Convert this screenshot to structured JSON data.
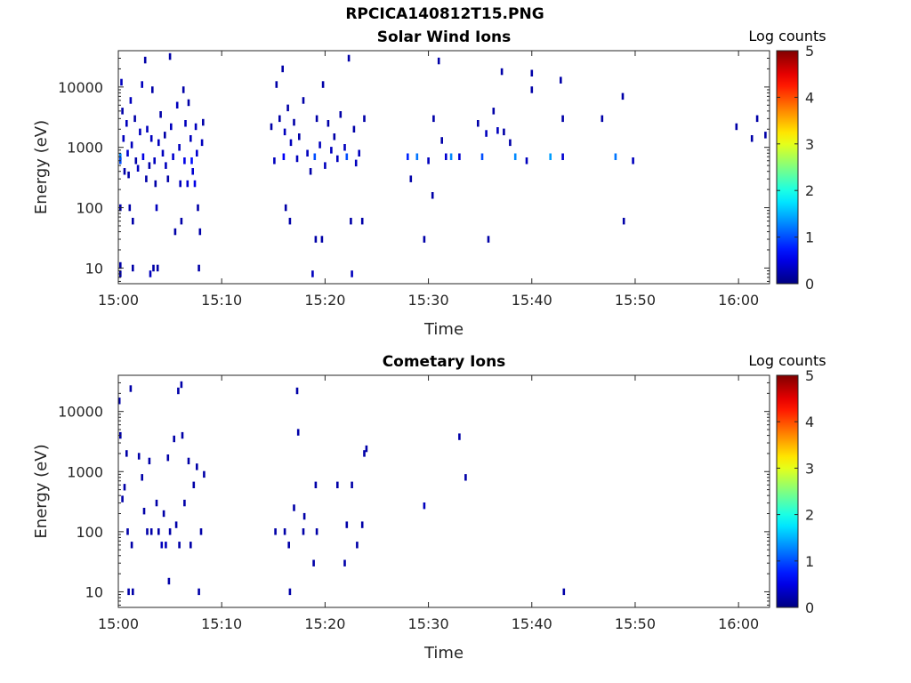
{
  "page_title": "RPCICA140812T15.PNG",
  "colors": {
    "axis": "#262626",
    "background": "#ffffff"
  },
  "chart_data": [
    {
      "type": "heatmap",
      "title": "Solar Wind Ions",
      "xlabel": "Time",
      "ylabel": "Energy (eV)",
      "x_ticks": [
        "15:00",
        "15:10",
        "15:20",
        "15:30",
        "15:40",
        "15:50",
        "16:00"
      ],
      "x_range": [
        "15:00",
        "16:03"
      ],
      "y_scale": "log",
      "y_range": [
        5.5,
        40000
      ],
      "y_ticks": [
        10,
        100,
        1000,
        10000
      ],
      "y_tick_labels": [
        "10",
        "100",
        "1000",
        "10000"
      ],
      "colorbar": {
        "title": "Log counts",
        "range": [
          0,
          5
        ],
        "ticks": [
          "0",
          "1",
          "2",
          "3",
          "4",
          "5"
        ],
        "colormap": "jet"
      },
      "cells": [
        [
          "15:00.2",
          700,
          1.3
        ],
        [
          "15:00.2",
          600,
          1.0
        ],
        [
          "15:00.2",
          100,
          0.2
        ],
        [
          "15:00.2",
          8,
          0.2
        ],
        [
          "15:00.2",
          11,
          0.2
        ],
        [
          "15:00.3",
          12000,
          0.3
        ],
        [
          "15:00.4",
          4000,
          0.2
        ],
        [
          "15:00.5",
          1400,
          0.3
        ],
        [
          "15:00.6",
          400,
          0.2
        ],
        [
          "15:00.8",
          2500,
          0.3
        ],
        [
          "15:00.9",
          800,
          0.4
        ],
        [
          "15:01.0",
          350,
          0.2
        ],
        [
          "15:01.1",
          100,
          0.2
        ],
        [
          "15:01.2",
          6000,
          0.3
        ],
        [
          "15:01.3",
          1100,
          0.3
        ],
        [
          "15:01.4",
          60,
          0.2
        ],
        [
          "15:01.4",
          10,
          0.2
        ],
        [
          "15:01.6",
          3000,
          0.2
        ],
        [
          "15:01.7",
          600,
          0.2
        ],
        [
          "15:01.9",
          450,
          0.3
        ],
        [
          "15:02.1",
          1800,
          0.3
        ],
        [
          "15:02.3",
          11000,
          0.3
        ],
        [
          "15:02.4",
          700,
          0.5
        ],
        [
          "15:02.6",
          28000,
          0.2
        ],
        [
          "15:02.7",
          300,
          0.2
        ],
        [
          "15:02.8",
          2000,
          0.3
        ],
        [
          "15:03.0",
          500,
          0.2
        ],
        [
          "15:03.1",
          8,
          0.3
        ],
        [
          "15:03.2",
          1400,
          0.3
        ],
        [
          "15:03.3",
          9000,
          0.2
        ],
        [
          "15:03.4",
          10,
          0.2
        ],
        [
          "15:03.5",
          600,
          0.3
        ],
        [
          "15:03.6",
          250,
          0.2
        ],
        [
          "15:03.7",
          100,
          0.3
        ],
        [
          "15:03.8",
          10,
          0.2
        ],
        [
          "15:03.9",
          1200,
          0.3
        ],
        [
          "15:04.1",
          3500,
          0.2
        ],
        [
          "15:04.3",
          800,
          0.3
        ],
        [
          "15:04.5",
          1600,
          0.2
        ],
        [
          "15:04.6",
          500,
          0.3
        ],
        [
          "15:04.8",
          300,
          0.2
        ],
        [
          "15:05.0",
          32000,
          0.2
        ],
        [
          "15:05.1",
          2200,
          0.3
        ],
        [
          "15:05.3",
          700,
          0.4
        ],
        [
          "15:05.5",
          40,
          0.2
        ],
        [
          "15:05.7",
          5000,
          0.3
        ],
        [
          "15:05.9",
          1000,
          0.3
        ],
        [
          "15:06.0",
          250,
          0.3
        ],
        [
          "15:06.1",
          60,
          0.2
        ],
        [
          "15:06.3",
          9000,
          0.2
        ],
        [
          "15:06.4",
          600,
          0.5
        ],
        [
          "15:06.5",
          2500,
          0.3
        ],
        [
          "15:06.7",
          250,
          0.4
        ],
        [
          "15:06.8",
          5500,
          0.2
        ],
        [
          "15:07.0",
          1400,
          0.3
        ],
        [
          "15:07.1",
          600,
          0.7
        ],
        [
          "15:07.2",
          400,
          0.4
        ],
        [
          "15:07.4",
          250,
          0.5
        ],
        [
          "15:07.5",
          2200,
          0.3
        ],
        [
          "15:07.6",
          800,
          0.4
        ],
        [
          "15:07.7",
          100,
          0.2
        ],
        [
          "15:07.8",
          10,
          0.2
        ],
        [
          "15:07.9",
          40,
          0.2
        ],
        [
          "15:08.1",
          1200,
          0.3
        ],
        [
          "15:08.2",
          2600,
          0.2
        ],
        [
          "15:14.8",
          2200,
          0.2
        ],
        [
          "15:15.1",
          600,
          0.3
        ],
        [
          "15:15.3",
          11000,
          0.2
        ],
        [
          "15:15.6",
          3000,
          0.2
        ],
        [
          "15:15.9",
          20000,
          0.2
        ],
        [
          "15:16.0",
          700,
          0.6
        ],
        [
          "15:16.1",
          1800,
          0.3
        ],
        [
          "15:16.2",
          100,
          0.2
        ],
        [
          "15:16.4",
          4500,
          0.2
        ],
        [
          "15:16.6",
          60,
          0.2
        ],
        [
          "15:16.7",
          1200,
          0.3
        ],
        [
          "15:17.0",
          2600,
          0.2
        ],
        [
          "15:17.3",
          650,
          0.3
        ],
        [
          "15:17.5",
          1500,
          0.2
        ],
        [
          "15:17.9",
          6000,
          0.2
        ],
        [
          "15:18.3",
          800,
          0.3
        ],
        [
          "15:18.6",
          400,
          0.2
        ],
        [
          "15:18.8",
          8,
          0.3
        ],
        [
          "15:19.0",
          700,
          1.0
        ],
        [
          "15:19.1",
          30,
          0.2
        ],
        [
          "15:19.2",
          3000,
          0.2
        ],
        [
          "15:19.5",
          1100,
          0.3
        ],
        [
          "15:19.7",
          30,
          0.2
        ],
        [
          "15:19.8",
          11000,
          0.2
        ],
        [
          "15:20.0",
          500,
          0.3
        ],
        [
          "15:20.3",
          2500,
          0.2
        ],
        [
          "15:20.6",
          900,
          0.3
        ],
        [
          "15:20.9",
          1500,
          0.2
        ],
        [
          "15:21.2",
          650,
          0.3
        ],
        [
          "15:21.5",
          3500,
          0.2
        ],
        [
          "15:21.9",
          1000,
          0.3
        ],
        [
          "15:22.1",
          700,
          1.0
        ],
        [
          "15:22.3",
          30000,
          0.2
        ],
        [
          "15:22.5",
          60,
          0.2
        ],
        [
          "15:22.6",
          8,
          0.3
        ],
        [
          "15:22.8",
          2000,
          0.2
        ],
        [
          "15:23.0",
          550,
          0.3
        ],
        [
          "15:23.3",
          800,
          0.3
        ],
        [
          "15:23.6",
          60,
          0.2
        ],
        [
          "15:23.8",
          3000,
          0.2
        ],
        [
          "15:28.0",
          700,
          0.8
        ],
        [
          "15:28.3",
          300,
          0.2
        ],
        [
          "15:28.9",
          700,
          1.2
        ],
        [
          "15:29.6",
          30,
          0.2
        ],
        [
          "15:30.0",
          600,
          0.3
        ],
        [
          "15:30.4",
          160,
          0.2
        ],
        [
          "15:30.5",
          3000,
          0.2
        ],
        [
          "15:31.0",
          27000,
          0.2
        ],
        [
          "15:31.3",
          1300,
          0.2
        ],
        [
          "15:31.7",
          700,
          0.4
        ],
        [
          "15:32.2",
          700,
          1.3
        ],
        [
          "15:33.0",
          700,
          0.4
        ],
        [
          "15:34.8",
          2500,
          0.2
        ],
        [
          "15:35.2",
          700,
          1.0
        ],
        [
          "15:35.6",
          1700,
          0.3
        ],
        [
          "15:35.8",
          30,
          0.2
        ],
        [
          "15:36.3",
          4000,
          0.2
        ],
        [
          "15:36.7",
          1900,
          0.3
        ],
        [
          "15:37.1",
          18000,
          0.2
        ],
        [
          "15:37.3",
          1800,
          0.2
        ],
        [
          "15:37.9",
          1200,
          0.2
        ],
        [
          "15:38.4",
          700,
          1.3
        ],
        [
          "15:39.5",
          600,
          0.3
        ],
        [
          "15:40.0",
          17000,
          0.2
        ],
        [
          "15:40.0",
          9000,
          0.2
        ],
        [
          "15:41.8",
          700,
          1.4
        ],
        [
          "15:42.8",
          13000,
          0.2
        ],
        [
          "15:43.0",
          3000,
          0.2
        ],
        [
          "15:43.0",
          700,
          0.4
        ],
        [
          "15:46.8",
          3000,
          0.2
        ],
        [
          "15:48.1",
          700,
          1.2
        ],
        [
          "15:48.8",
          7000,
          0.2
        ],
        [
          "15:48.9",
          60,
          0.2
        ],
        [
          "15:49.8",
          600,
          0.3
        ],
        [
          "15:59.8",
          2200,
          0.2
        ],
        [
          "16:01.3",
          1400,
          0.2
        ],
        [
          "16:01.8",
          3000,
          0.2
        ],
        [
          "16:02.6",
          1600,
          0.2
        ]
      ]
    },
    {
      "type": "heatmap",
      "title": "Cometary Ions",
      "xlabel": "Time",
      "ylabel": "Energy (eV)",
      "x_ticks": [
        "15:00",
        "15:10",
        "15:20",
        "15:30",
        "15:40",
        "15:50",
        "16:00"
      ],
      "x_range": [
        "15:00",
        "16:03"
      ],
      "y_scale": "log",
      "y_range": [
        5.5,
        40000
      ],
      "y_ticks": [
        10,
        100,
        1000,
        10000
      ],
      "y_tick_labels": [
        "10",
        "100",
        "1000",
        "10000"
      ],
      "colorbar": {
        "title": "Log counts",
        "range": [
          0,
          5
        ],
        "ticks": [
          "0",
          "1",
          "2",
          "3",
          "4",
          "5"
        ],
        "colormap": "jet"
      },
      "cells": [
        [
          "15:00.1",
          15000,
          0.2
        ],
        [
          "15:00.2",
          4000,
          0.2
        ],
        [
          "15:00.4",
          350,
          0.2
        ],
        [
          "15:00.6",
          550,
          0.2
        ],
        [
          "15:00.8",
          2000,
          0.2
        ],
        [
          "15:00.9",
          100,
          0.2
        ],
        [
          "15:01.0",
          10,
          0.2
        ],
        [
          "15:01.2",
          24000,
          0.2
        ],
        [
          "15:01.3",
          60,
          0.2
        ],
        [
          "15:01.4",
          10,
          0.2
        ],
        [
          "15:02.0",
          1800,
          0.2
        ],
        [
          "15:02.3",
          800,
          0.2
        ],
        [
          "15:02.5",
          220,
          0.2
        ],
        [
          "15:02.8",
          100,
          0.2
        ],
        [
          "15:03.0",
          1500,
          0.2
        ],
        [
          "15:03.2",
          100,
          0.2
        ],
        [
          "15:03.7",
          300,
          0.2
        ],
        [
          "15:03.9",
          100,
          0.2
        ],
        [
          "15:04.2",
          60,
          0.3
        ],
        [
          "15:04.4",
          200,
          0.2
        ],
        [
          "15:04.6",
          60,
          0.3
        ],
        [
          "15:04.8",
          1700,
          0.2
        ],
        [
          "15:04.9",
          15,
          0.2
        ],
        [
          "15:05.0",
          100,
          0.2
        ],
        [
          "15:05.4",
          3500,
          0.2
        ],
        [
          "15:05.6",
          130,
          0.2
        ],
        [
          "15:05.8",
          22000,
          0.2
        ],
        [
          "15:05.9",
          60,
          0.2
        ],
        [
          "15:06.1",
          28000,
          0.2
        ],
        [
          "15:06.2",
          4000,
          0.2
        ],
        [
          "15:06.4",
          300,
          0.2
        ],
        [
          "15:06.8",
          1500,
          0.2
        ],
        [
          "15:07.0",
          60,
          0.2
        ],
        [
          "15:07.3",
          600,
          0.2
        ],
        [
          "15:07.6",
          1200,
          0.2
        ],
        [
          "15:07.8",
          10,
          0.2
        ],
        [
          "15:08.0",
          100,
          0.2
        ],
        [
          "15:08.3",
          900,
          0.2
        ],
        [
          "15:15.2",
          100,
          0.2
        ],
        [
          "15:16.1",
          100,
          0.2
        ],
        [
          "15:16.5",
          60,
          0.2
        ],
        [
          "15:16.6",
          10,
          0.2
        ],
        [
          "15:17.0",
          250,
          0.2
        ],
        [
          "15:17.3",
          22000,
          0.2
        ],
        [
          "15:17.4",
          4500,
          0.2
        ],
        [
          "15:17.9",
          100,
          0.2
        ],
        [
          "15:18.0",
          180,
          0.2
        ],
        [
          "15:18.9",
          30,
          0.2
        ],
        [
          "15:19.1",
          600,
          0.2
        ],
        [
          "15:19.2",
          100,
          0.2
        ],
        [
          "15:21.2",
          600,
          0.2
        ],
        [
          "15:21.9",
          30,
          0.2
        ],
        [
          "15:22.1",
          130,
          0.2
        ],
        [
          "15:22.6",
          600,
          0.2
        ],
        [
          "15:23.1",
          60,
          0.2
        ],
        [
          "15:23.6",
          130,
          0.2
        ],
        [
          "15:23.8",
          2000,
          0.2
        ],
        [
          "15:24.0",
          2400,
          0.2
        ],
        [
          "15:29.6",
          270,
          0.3
        ],
        [
          "15:33.0",
          3800,
          0.2
        ],
        [
          "15:33.6",
          800,
          0.2
        ],
        [
          "15:43.1",
          10,
          0.2
        ]
      ]
    }
  ]
}
